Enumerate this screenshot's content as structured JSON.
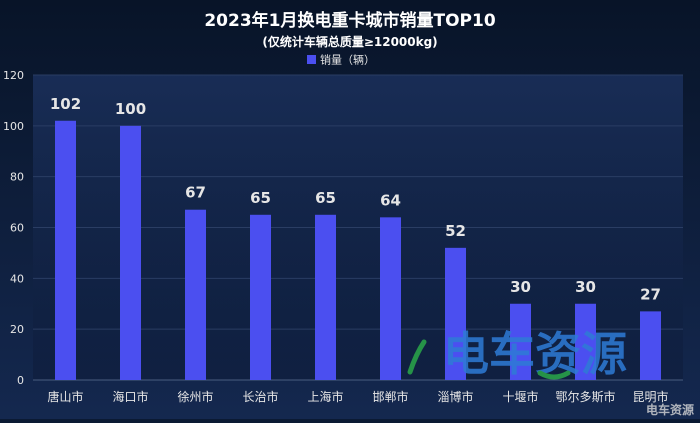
{
  "chart_data": {
    "type": "bar",
    "title": "2023年1月换电重卡城市销量TOP10",
    "subtitle": "(仅统计车辆总质量≥12000kg)",
    "legend": {
      "label": "销量（辆）",
      "placement": "top-center"
    },
    "categories": [
      "唐山市",
      "海口市",
      "徐州市",
      "长治市",
      "上海市",
      "邯郸市",
      "淄博市",
      "十堰市",
      "鄂尔多斯市",
      "昆明市"
    ],
    "series": [
      {
        "name": "销量（辆）",
        "values": [
          102,
          100,
          67,
          65,
          65,
          64,
          52,
          30,
          30,
          27
        ]
      }
    ],
    "y_ticks": [
      "0",
      "20",
      "40",
      "60",
      "80",
      "100",
      "120"
    ],
    "ylim": [
      0,
      120
    ],
    "grid": true,
    "xlabel": "",
    "ylabel": ""
  },
  "watermark": {
    "text": "电车资源",
    "corner_text": "电车资源"
  },
  "colors": {
    "background_top": "#081428",
    "background_bottom": "#14284f",
    "bar": "#4b4ff0",
    "legend_swatch": "#4b4ff0",
    "text": "#ffffff",
    "label": "#e6e6e6",
    "grid": "#2a3d63",
    "watermark": "#2e7bd6",
    "watermark_accent": "#2aa84a"
  }
}
